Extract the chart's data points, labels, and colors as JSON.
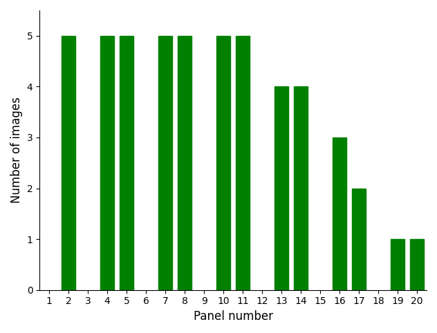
{
  "categories": [
    1,
    2,
    3,
    4,
    5,
    6,
    7,
    8,
    9,
    10,
    11,
    12,
    13,
    14,
    15,
    16,
    17,
    18,
    19,
    20
  ],
  "values": [
    0,
    5,
    0,
    5,
    5,
    0,
    5,
    5,
    0,
    5,
    5,
    0,
    4,
    4,
    0,
    3,
    2,
    0,
    1,
    1
  ],
  "bar_color": "#008000",
  "xlabel": "Panel number",
  "ylabel": "Number of images",
  "ylim": [
    0,
    5.5
  ],
  "yticks": [
    0,
    1,
    2,
    3,
    4,
    5
  ],
  "xticks": [
    1,
    2,
    3,
    4,
    5,
    6,
    7,
    8,
    9,
    10,
    11,
    12,
    13,
    14,
    15,
    16,
    17,
    18,
    19,
    20
  ],
  "bar_width": 0.7,
  "xlim": [
    0.5,
    20.5
  ]
}
